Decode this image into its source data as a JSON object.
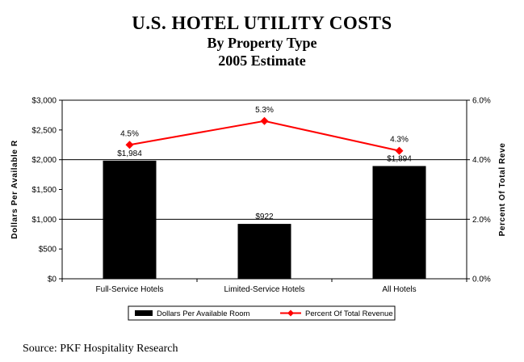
{
  "title": "U.S. HOTEL UTILITY COSTS",
  "subtitle": "By Property Type",
  "subtitle2": "2005 Estimate",
  "source": "Source: PKF Hospitality Research",
  "colors": {
    "bar": "#000000",
    "line": "#ff0000",
    "gridline": "#000000"
  },
  "chart_data": {
    "type": "bar",
    "title": "U.S. HOTEL UTILITY COSTS",
    "subtitle": "By Property Type 2005 Estimate",
    "categories": [
      "Full-Service Hotels",
      "Limited-Service Hotels",
      "All Hotels"
    ],
    "series": [
      {
        "name": "Dollars Per Available Room",
        "type": "bar",
        "axis": "left",
        "values": [
          1984,
          922,
          1894
        ],
        "labels": [
          "$1,984",
          "$922",
          "$1,894"
        ]
      },
      {
        "name": "Percent Of Total Revenue",
        "type": "line",
        "axis": "right",
        "values": [
          4.5,
          5.3,
          4.3
        ],
        "labels": [
          "4.5%",
          "5.3%",
          "4.3%"
        ]
      }
    ],
    "ylabel": "Dollars Per Available R",
    "y2label": "Percent Of Total Reve",
    "ylim": [
      0,
      3000
    ],
    "y2lim": [
      0,
      6
    ],
    "yticks": [
      0,
      500,
      1000,
      1500,
      2000,
      2500,
      3000
    ],
    "ytick_labels": [
      "$0",
      "$500",
      "$1,000",
      "$1,500",
      "$2,000",
      "$2,500",
      "$3,000"
    ],
    "y2ticks": [
      0,
      2,
      4,
      6
    ],
    "y2tick_labels": [
      "0.0%",
      "2.0%",
      "4.0%",
      "6.0%"
    ],
    "grid_values": [
      1000,
      2000,
      3000
    ],
    "legend_position": "bottom"
  }
}
